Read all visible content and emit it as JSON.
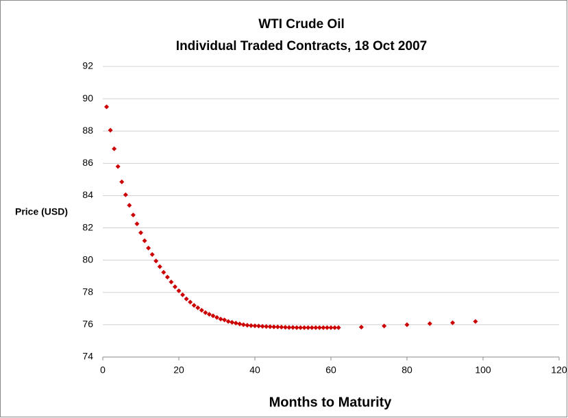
{
  "chart_data": {
    "type": "scatter",
    "title": "WTI Crude Oil",
    "subtitle": "Individual Traded Contracts, 18 Oct 2007",
    "x_label": "Months to Maturity",
    "y_label": "Price (USD)",
    "color": "#cc0000",
    "grid": true,
    "xlim": [
      0,
      120
    ],
    "xticks": [
      0,
      20,
      40,
      60,
      80,
      100,
      120
    ],
    "ylim": [
      74,
      92
    ],
    "yticks": [
      74,
      76,
      78,
      80,
      82,
      84,
      86,
      88,
      90,
      92
    ],
    "x": [
      1,
      2,
      3,
      4,
      5,
      6,
      7,
      8,
      9,
      10,
      11,
      12,
      13,
      14,
      15,
      16,
      17,
      18,
      19,
      20,
      21,
      22,
      23,
      24,
      25,
      26,
      27,
      28,
      29,
      30,
      31,
      32,
      33,
      34,
      35,
      36,
      37,
      38,
      39,
      40,
      41,
      42,
      43,
      44,
      45,
      46,
      47,
      48,
      49,
      50,
      51,
      52,
      53,
      54,
      55,
      56,
      57,
      58,
      59,
      60,
      61,
      62,
      68,
      74,
      80,
      86,
      92,
      98
    ],
    "values": [
      89.5,
      88.05,
      86.9,
      85.8,
      84.85,
      84.05,
      83.4,
      82.8,
      82.25,
      81.7,
      81.2,
      80.75,
      80.35,
      79.95,
      79.6,
      79.25,
      78.95,
      78.65,
      78.35,
      78.1,
      77.85,
      77.6,
      77.4,
      77.2,
      77.05,
      76.9,
      76.75,
      76.65,
      76.55,
      76.45,
      76.35,
      76.3,
      76.2,
      76.15,
      76.1,
      76.05,
      76.0,
      75.97,
      75.95,
      75.93,
      75.92,
      75.9,
      75.89,
      75.88,
      75.87,
      75.86,
      75.85,
      75.84,
      75.83,
      75.83,
      75.82,
      75.82,
      75.82,
      75.82,
      75.82,
      75.82,
      75.82,
      75.82,
      75.82,
      75.82,
      75.82,
      75.82,
      75.85,
      75.92,
      76.0,
      76.07,
      76.12,
      76.2
    ]
  }
}
